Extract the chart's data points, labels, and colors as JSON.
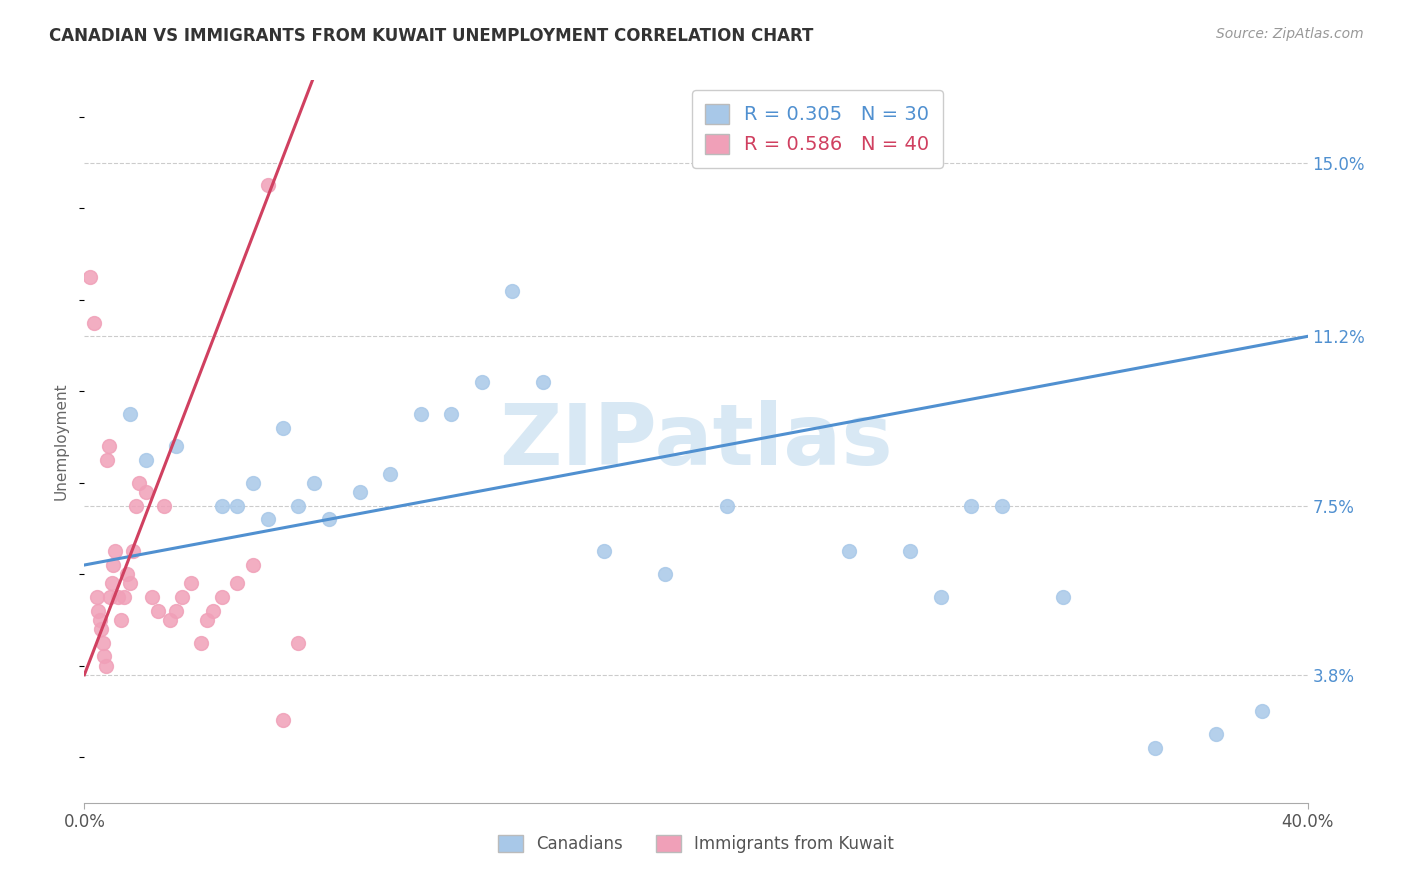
{
  "title": "CANADIAN VS IMMIGRANTS FROM KUWAIT UNEMPLOYMENT CORRELATION CHART",
  "source": "Source: ZipAtlas.com",
  "ylabel": "Unemployment",
  "ytick_labels": [
    "3.8%",
    "7.5%",
    "11.2%",
    "15.0%"
  ],
  "ytick_values": [
    3.8,
    7.5,
    11.2,
    15.0
  ],
  "xmin": 0.0,
  "xmax": 40.0,
  "ymin": 1.0,
  "ymax": 16.8,
  "r_canadian": 0.305,
  "n_canadian": 30,
  "r_kuwait": 0.586,
  "n_kuwait": 40,
  "canadian_color": "#a8c8e8",
  "kuwait_color": "#f0a0b8",
  "canadian_line_color": "#5090d0",
  "kuwait_line_color": "#d04060",
  "watermark_text": "ZIPatlas",
  "legend_label_1": "Canadians",
  "legend_label_2": "Immigrants from Kuwait",
  "blue_line_x0": 0.0,
  "blue_line_y0": 6.2,
  "blue_line_x1": 40.0,
  "blue_line_y1": 11.2,
  "pink_line_x0": 0.0,
  "pink_line_y0": 3.8,
  "pink_line_x1": 7.0,
  "pink_line_y1": 16.0,
  "canadians_x": [
    1.5,
    2.0,
    3.0,
    4.5,
    5.0,
    5.5,
    6.0,
    6.5,
    7.0,
    7.5,
    8.0,
    9.0,
    10.0,
    11.0,
    12.0,
    13.0,
    14.0,
    15.0,
    17.0,
    19.0,
    21.0,
    25.0,
    27.0,
    28.0,
    29.0,
    30.0,
    32.0,
    35.0,
    37.0,
    38.5
  ],
  "canadians_y": [
    9.5,
    8.5,
    8.8,
    7.5,
    7.5,
    8.0,
    7.2,
    9.2,
    7.5,
    8.0,
    7.2,
    7.8,
    8.2,
    9.5,
    9.5,
    10.2,
    12.2,
    10.2,
    6.5,
    6.0,
    7.5,
    6.5,
    6.5,
    5.5,
    7.5,
    7.5,
    5.5,
    2.2,
    2.5,
    3.0
  ],
  "kuwait_x": [
    0.2,
    0.3,
    0.4,
    0.45,
    0.5,
    0.55,
    0.6,
    0.65,
    0.7,
    0.75,
    0.8,
    0.85,
    0.9,
    0.95,
    1.0,
    1.1,
    1.2,
    1.3,
    1.4,
    1.5,
    1.6,
    1.7,
    1.8,
    2.0,
    2.2,
    2.4,
    2.6,
    2.8,
    3.0,
    3.2,
    3.5,
    3.8,
    4.0,
    4.2,
    4.5,
    5.0,
    5.5,
    6.0,
    6.5,
    7.0
  ],
  "kuwait_y": [
    12.5,
    11.5,
    5.5,
    5.2,
    5.0,
    4.8,
    4.5,
    4.2,
    4.0,
    8.5,
    8.8,
    5.5,
    5.8,
    6.2,
    6.5,
    5.5,
    5.0,
    5.5,
    6.0,
    5.8,
    6.5,
    7.5,
    8.0,
    7.8,
    5.5,
    5.2,
    7.5,
    5.0,
    5.2,
    5.5,
    5.8,
    4.5,
    5.0,
    5.2,
    5.5,
    5.8,
    6.2,
    14.5,
    2.8,
    4.5
  ]
}
